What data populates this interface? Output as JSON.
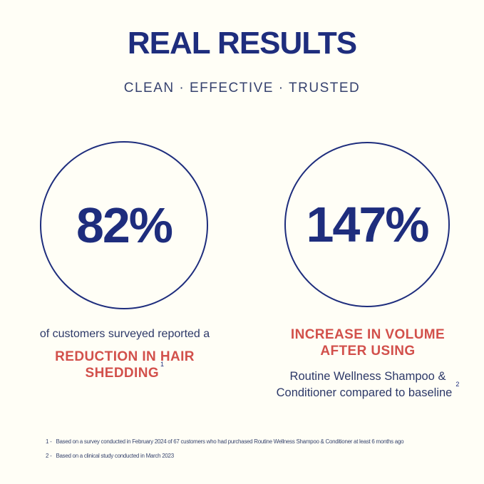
{
  "header": {
    "title": "REAL RESULTS",
    "subtitle": "CLEAN · EFFECTIVE · TRUSTED"
  },
  "stats": [
    {
      "value": "82%",
      "plain_lines": [
        "of customers surveyed reported a"
      ],
      "highlight_lines": [
        "REDUCTION IN HAIR",
        "SHEDDING"
      ],
      "footnote_ref": "1"
    },
    {
      "value": "147%",
      "highlight_lines": [
        "INCREASE IN VOLUME",
        "AFTER USING"
      ],
      "plain_lines": [
        "Routine Wellness Shampoo &",
        "Conditioner compared to baseline"
      ],
      "footnote_ref": "2"
    }
  ],
  "footnotes": [
    {
      "marker": "1 -",
      "text": "Based on a survey conducted in February 2024 of 67 customers who had purchased Routine Wellness Shampoo & Conditioner at least 6 months ago"
    },
    {
      "marker": "2 -",
      "text": "Based on a clinical study conducted in March 2023"
    }
  ],
  "colors": {
    "background": "#FFFEF6",
    "navy": "#1E2D7D",
    "navy_soft": "#36426F",
    "red": "#D2504B"
  }
}
